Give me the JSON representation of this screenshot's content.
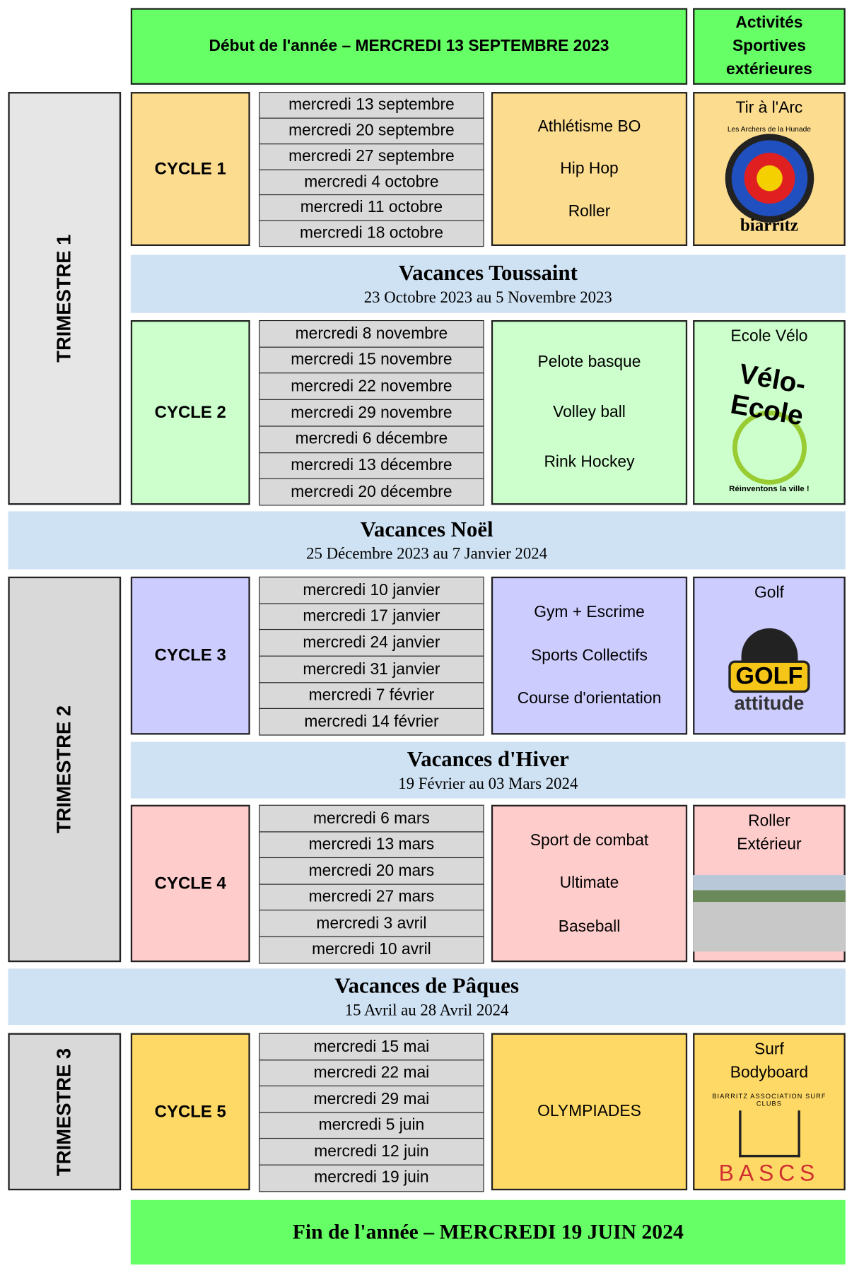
{
  "header": {
    "start": "Début de l'année – MERCREDI 13 SEPTEMBRE 2023",
    "activities_title": "Activités Sportives extérieures"
  },
  "trimesters": [
    "TRIMESTRE 1",
    "TRIMESTRE 2",
    "TRIMESTRE 3"
  ],
  "cycles": [
    {
      "label": "CYCLE 1",
      "dates": [
        "mercredi 13 septembre",
        "mercredi 20 septembre",
        "mercredi 27 septembre",
        "mercredi 4 octobre",
        "mercredi 11 octobre",
        "mercredi 18 octobre"
      ],
      "activities": [
        "Athlétisme BO",
        "Hip Hop",
        "Roller"
      ],
      "outdoor": "Tir à l'Arc",
      "logo_text": [
        "Les Archers de la Hunade",
        "biarritz"
      ]
    },
    {
      "label": "CYCLE 2",
      "dates": [
        "mercredi 8 novembre",
        "mercredi 15 novembre",
        "mercredi 22 novembre",
        "mercredi 29 novembre",
        "mercredi 6 décembre",
        "mercredi 13 décembre",
        "mercredi 20 décembre"
      ],
      "activities": [
        "Pelote basque",
        "Volley ball",
        "Rink Hockey"
      ],
      "outdoor": "Ecole Vélo",
      "logo_text": [
        "Vélo-Ecole",
        "Réinventons la ville !"
      ]
    },
    {
      "label": "CYCLE 3",
      "dates": [
        "mercredi 10 janvier",
        "mercredi 17 janvier",
        "mercredi 24 janvier",
        "mercredi 31 janvier",
        "mercredi 7 février",
        "mercredi 14 février"
      ],
      "activities": [
        "Gym  + Escrime",
        "Sports Collectifs",
        "Course d'orientation"
      ],
      "outdoor": "Golf",
      "logo_text": [
        "GOLF",
        "attitude"
      ]
    },
    {
      "label": "CYCLE 4",
      "dates": [
        "mercredi 6 mars",
        "mercredi 13 mars",
        "mercredi 20 mars",
        "mercredi 27 mars",
        "mercredi 3 avril",
        "mercredi 10 avril"
      ],
      "activities": [
        "Sport de combat",
        "Ultimate",
        "Baseball"
      ],
      "outdoor": "Roller Extérieur"
    },
    {
      "label": "CYCLE 5",
      "dates": [
        "mercredi 15 mai",
        "mercredi 22 mai",
        "mercredi 29 mai",
        "mercredi 5 juin",
        "mercredi 12 juin",
        "mercredi 19 juin"
      ],
      "activities": [
        "OLYMPIADES"
      ],
      "outdoor": "Surf Bodyboard",
      "logo_text": [
        "BIARRITZ ASSOCIATION SURF CLUBS",
        "BASCS"
      ]
    }
  ],
  "vacations": [
    {
      "title": "Vacances Toussaint",
      "dates": "23 Octobre 2023 au 5 Novembre 2023"
    },
    {
      "title": "Vacances Noël",
      "dates": "25 Décembre 2023 au 7 Janvier 2024"
    },
    {
      "title": "Vacances d'Hiver",
      "dates": "19 Février au 03 Mars 2024"
    },
    {
      "title": "Vacances de Pâques",
      "dates": "15 Avril au 28 Avril 2024"
    }
  ],
  "footer": "Fin de l'année – MERCREDI 19 JUIN 2024"
}
